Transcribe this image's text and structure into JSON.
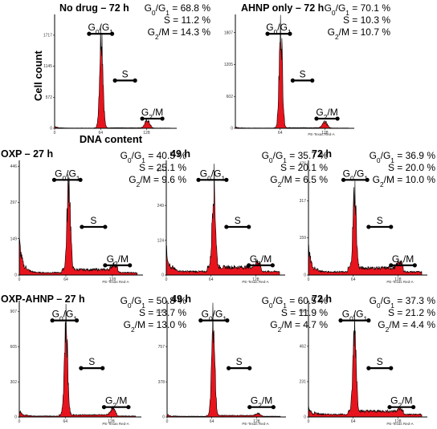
{
  "figure": {
    "ylabel": "Cell count",
    "xlabel": "DNA content"
  },
  "chart_data": [
    {
      "type": "area",
      "title": "No drug – 72 h",
      "stats": {
        "g0g1": "68.8 %",
        "s": "11.2 %",
        "g2m": "14.3 %"
      },
      "xlabel": "",
      "xticks": [
        0,
        64,
        128
      ],
      "xlim": [
        0,
        170
      ],
      "yticks": [
        0,
        572,
        1145,
        1717
      ],
      "ylim": [
        0,
        2100
      ],
      "gates": {
        "g0g1": [
          48,
          80
        ],
        "s": [
          84,
          112
        ],
        "g2m": [
          122,
          150
        ]
      },
      "peaks": {
        "g1_x": 65,
        "g1_height": 1800,
        "g2_x": 129,
        "g2_height": 135,
        "s_level": 10,
        "debris": 40
      }
    },
    {
      "type": "area",
      "title": "AHNP only – 72 h",
      "stats": {
        "g0g1": "70.1 %",
        "s": "10.3 %",
        "g2m": "10.7 %"
      },
      "xlabel": "PE-Texas Red-A",
      "xticks": [
        64,
        128
      ],
      "xlim": [
        0,
        170
      ],
      "yticks": [
        0,
        602,
        1205,
        1807
      ],
      "ylim": [
        0,
        2150
      ],
      "gates": {
        "g0g1": [
          46,
          78
        ],
        "s": [
          82,
          110
        ],
        "g2m": [
          116,
          146
        ]
      },
      "peaks": {
        "g1_x": 65,
        "g1_height": 1860,
        "g2_x": 128,
        "g2_height": 110,
        "s_level": 12,
        "debris": 30
      }
    },
    {
      "type": "area",
      "title": "OXP – 27 h",
      "stats": {
        "g0g1": "40.5 %",
        "s": "25.1 %",
        "g2m": "9.6 %"
      },
      "xlabel": "PE-Texas Red-A",
      "xticks": [
        0,
        64,
        128
      ],
      "xlim": [
        0,
        170
      ],
      "yticks": [
        0,
        149,
        297,
        446
      ],
      "ylim": [
        0,
        470
      ],
      "gates": {
        "g0g1": [
          48,
          84
        ],
        "s": [
          86,
          118
        ],
        "g2m": [
          118,
          152
        ]
      },
      "peaks": {
        "g1_x": 68,
        "g1_height": 365,
        "g2_x": 130,
        "g2_height": 22,
        "s_level": 22,
        "debris": 140
      }
    },
    {
      "type": "area",
      "title": "49 h",
      "stats": {
        "g0g1": "35.7 %",
        "s": "20.1 %",
        "g2m": "6.5 %"
      },
      "xlabel": "PE-Texas Red-A",
      "xticks": [
        0,
        64,
        128
      ],
      "xlim": [
        0,
        170
      ],
      "yticks": [
        0,
        124,
        249,
        374
      ],
      "ylim": [
        0,
        410
      ],
      "gates": {
        "g0g1": [
          46,
          86
        ],
        "s": [
          86,
          118
        ],
        "g2m": [
          118,
          152
        ]
      },
      "peaks": {
        "g1_x": 68,
        "g1_height": 300,
        "g2_x": 130,
        "g2_height": 20,
        "s_level": 28,
        "debris": 95
      }
    },
    {
      "type": "area",
      "title": "72 h",
      "stats": {
        "g0g1": "36.9 %",
        "s": "20.0 %",
        "g2m": "10.0 %"
      },
      "xlabel": "PE-Texas Red-A",
      "xticks": [
        0,
        64,
        128
      ],
      "xlim": [
        0,
        170
      ],
      "yticks": [
        0,
        159,
        317,
        476
      ],
      "ylim": [
        0,
        490
      ],
      "gates": {
        "g0g1": [
          50,
          84
        ],
        "s": [
          86,
          118
        ],
        "g2m": [
          118,
          152
        ]
      },
      "peaks": {
        "g1_x": 66,
        "g1_height": 330,
        "g2_x": 130,
        "g2_height": 28,
        "s_level": 30,
        "debris": 120
      }
    },
    {
      "type": "area",
      "title": "OXP-AHNP – 27 h",
      "stats": {
        "g0g1": "50.8 %",
        "s": "13.7 %",
        "g2m": "13.0 %"
      },
      "xlabel": "PE-Texas Red-A",
      "xticks": [
        0,
        64,
        128
      ],
      "xlim": [
        0,
        170
      ],
      "yticks": [
        0,
        302,
        605,
        907
      ],
      "ylim": [
        0,
        1000
      ],
      "gates": {
        "g0g1": [
          46,
          80
        ],
        "s": [
          86,
          116
        ],
        "g2m": [
          118,
          152
        ]
      },
      "peaks": {
        "g1_x": 65,
        "g1_height": 790,
        "g2_x": 130,
        "g2_height": 55,
        "s_level": 18,
        "debris": 60
      }
    },
    {
      "type": "area",
      "title": "49 h",
      "stats": {
        "g0g1": "60.5 %",
        "s": "11.9 %",
        "g2m": "4.7 %"
      },
      "xlabel": "PE-Texas Red-A",
      "xticks": [
        0,
        64,
        128
      ],
      "xlim": [
        0,
        170
      ],
      "yticks": [
        0,
        378,
        757,
        1136
      ],
      "ylim": [
        0,
        1250
      ],
      "gates": {
        "g0g1": [
          48,
          86
        ],
        "s": [
          88,
          118
        ],
        "g2m": [
          118,
          152
        ]
      },
      "peaks": {
        "g1_x": 66,
        "g1_height": 1000,
        "g2_x": 130,
        "g2_height": 20,
        "s_level": 16,
        "debris": 30
      }
    },
    {
      "type": "area",
      "title": "72 h",
      "stats": {
        "g0g1": "37.3 %",
        "s": "21.2 %",
        "g2m": "4.4 %"
      },
      "xlabel": "PE-Texas Red-A",
      "xticks": [
        0,
        64,
        128
      ],
      "xlim": [
        0,
        170
      ],
      "yticks": [
        0,
        231,
        462,
        693
      ],
      "ylim": [
        0,
        760
      ],
      "gates": {
        "g0g1": [
          46,
          86
        ],
        "s": [
          86,
          118
        ],
        "g2m": [
          116,
          150
        ]
      },
      "peaks": {
        "g1_x": 66,
        "g1_height": 560,
        "g2_x": 130,
        "g2_height": 15,
        "s_level": 38,
        "debris": 70
      }
    }
  ]
}
